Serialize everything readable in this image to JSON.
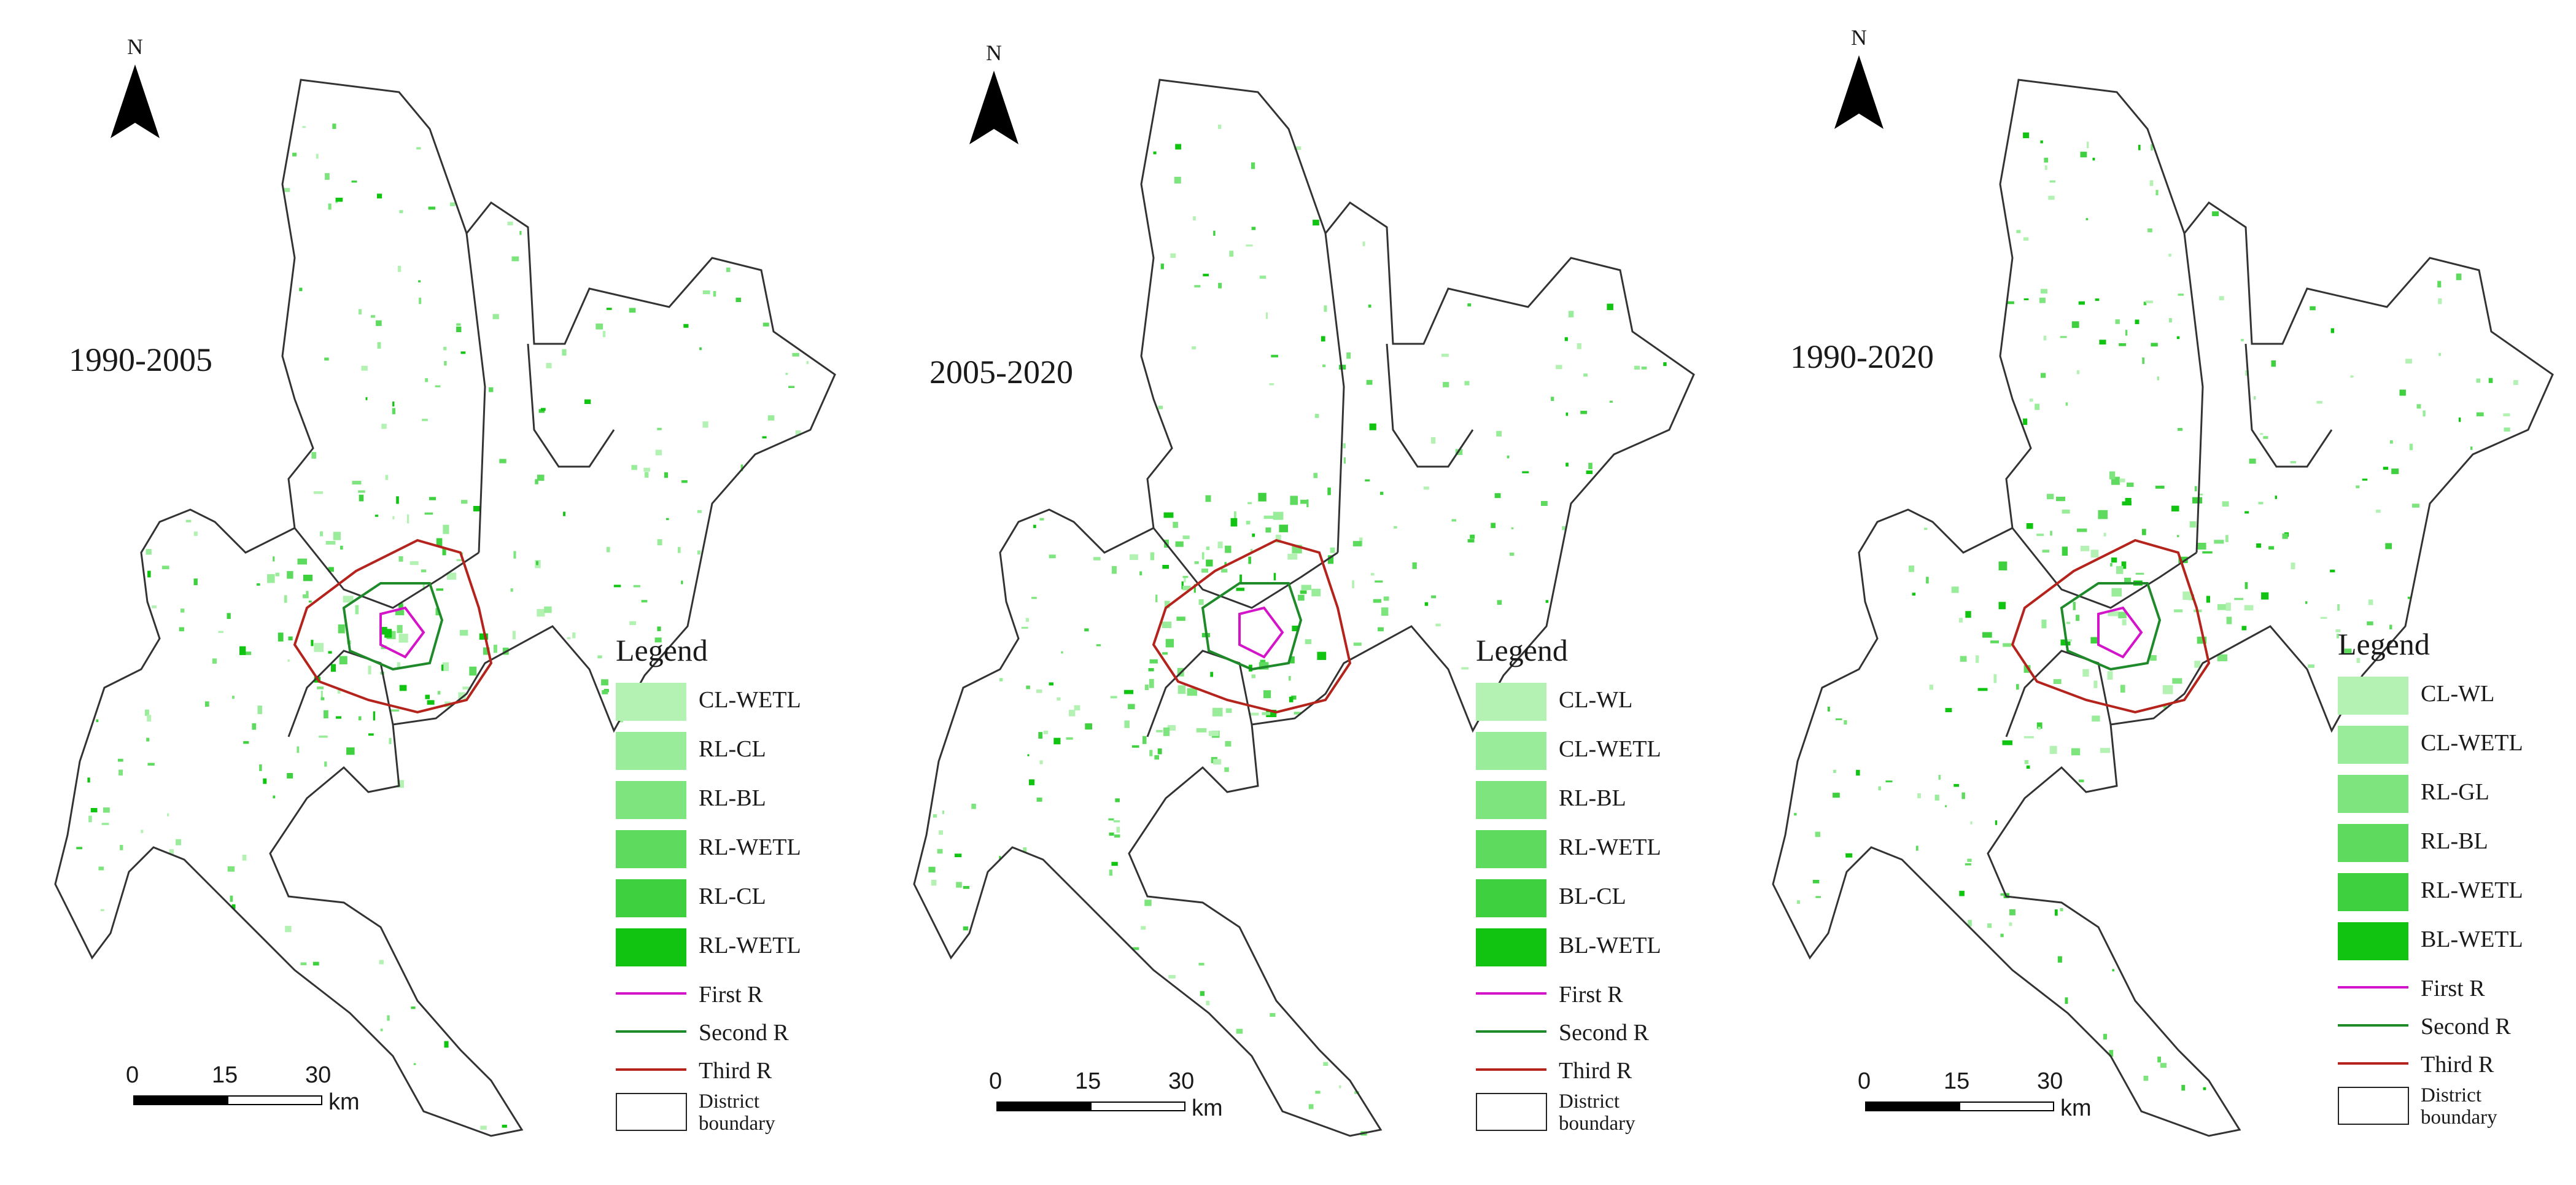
{
  "map_panels": [
    {
      "period": "1990-2005",
      "north_label": "N",
      "legend": {
        "title": "Legend",
        "items": [
          {
            "label": "CL-WETL",
            "color": "#b3f2b3"
          },
          {
            "label": "RL-CL",
            "color": "#99ec99"
          },
          {
            "label": "RL-BL",
            "color": "#7ee47e"
          },
          {
            "label": "RL-WETL",
            "color": "#5edb5e"
          },
          {
            "label": "RL-CL",
            "color": "#3fd03f"
          },
          {
            "label": "RL-WETL",
            "color": "#11c411"
          }
        ],
        "rings": [
          {
            "label": "First R",
            "color": "#d414c8"
          },
          {
            "label": "Second R",
            "color": "#1f8a2a"
          },
          {
            "label": "Third R",
            "color": "#b4241c"
          }
        ],
        "boundary_label_line1": "District",
        "boundary_label_line2": "boundary"
      },
      "scale": {
        "ticks": [
          "0",
          "15",
          "30"
        ],
        "unit": "km"
      }
    },
    {
      "period": "2005-2020",
      "north_label": "N",
      "legend": {
        "title": "Legend",
        "items": [
          {
            "label": "CL-WL",
            "color": "#b3f2b3"
          },
          {
            "label": "CL-WETL",
            "color": "#99ec99"
          },
          {
            "label": "RL-BL",
            "color": "#7ee47e"
          },
          {
            "label": "RL-WETL",
            "color": "#5edb5e"
          },
          {
            "label": "BL-CL",
            "color": "#3fd03f"
          },
          {
            "label": "BL-WETL",
            "color": "#11c411"
          }
        ],
        "rings": [
          {
            "label": "First R",
            "color": "#d414c8"
          },
          {
            "label": "Second R",
            "color": "#1f8a2a"
          },
          {
            "label": "Third R",
            "color": "#b4241c"
          }
        ],
        "boundary_label_line1": "District",
        "boundary_label_line2": "boundary"
      },
      "scale": {
        "ticks": [
          "0",
          "15",
          "30"
        ],
        "unit": "km"
      }
    },
    {
      "period": "1990-2020",
      "north_label": "N",
      "legend": {
        "title": "Legend",
        "items": [
          {
            "label": "CL-WL",
            "color": "#b3f2b3"
          },
          {
            "label": "CL-WETL",
            "color": "#99ec99"
          },
          {
            "label": "RL-GL",
            "color": "#7ee47e"
          },
          {
            "label": "RL-BL",
            "color": "#5edb5e"
          },
          {
            "label": "RL-WETL",
            "color": "#3fd03f"
          },
          {
            "label": "BL-WETL",
            "color": "#11c411"
          }
        ],
        "rings": [
          {
            "label": "First R",
            "color": "#d414c8"
          },
          {
            "label": "Second R",
            "color": "#1f8a2a"
          },
          {
            "label": "Third R",
            "color": "#b4241c"
          }
        ],
        "boundary_label_line1": "District",
        "boundary_label_line2": "boundary"
      },
      "scale": {
        "ticks": [
          "0",
          "15",
          "30"
        ],
        "unit": "km"
      }
    }
  ]
}
